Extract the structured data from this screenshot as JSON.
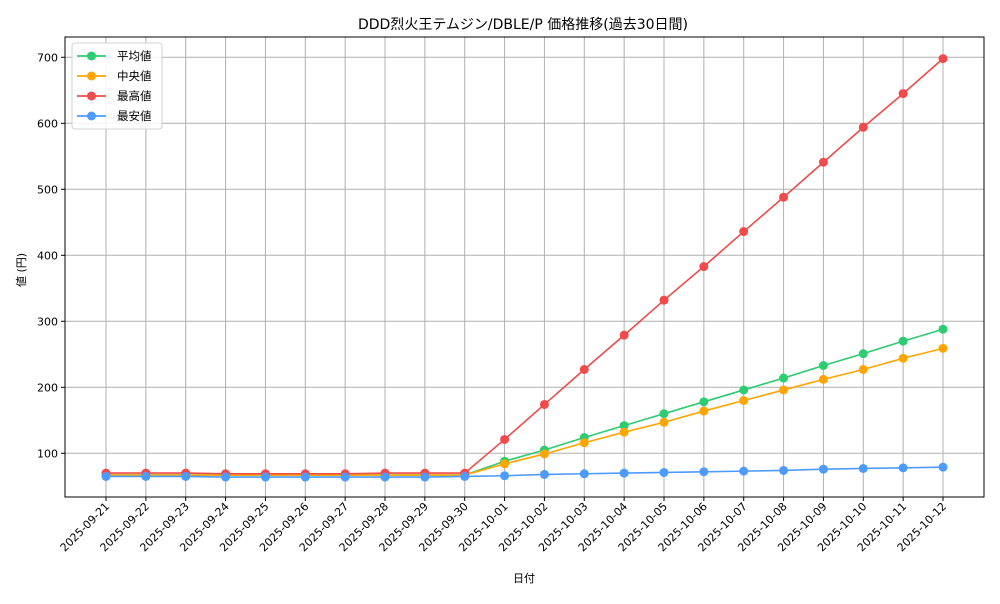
{
  "chart_data": {
    "type": "line",
    "title": "DDD烈火王テムジン/DBLE/P 価格推移(過去30日間)",
    "xlabel": "日付",
    "ylabel": "値 (円)",
    "ylim": [
      33,
      730
    ],
    "yticks": [
      100,
      200,
      300,
      400,
      500,
      600,
      700
    ],
    "grid": true,
    "legend_position": "upper left",
    "x": [
      "2025-09-21",
      "2025-09-22",
      "2025-09-23",
      "2025-09-24",
      "2025-09-25",
      "2025-09-26",
      "2025-09-27",
      "2025-09-28",
      "2025-09-29",
      "2025-09-30",
      "2025-10-01",
      "2025-10-02",
      "2025-10-03",
      "2025-10-04",
      "2025-10-05",
      "2025-10-06",
      "2025-10-07",
      "2025-10-08",
      "2025-10-09",
      "2025-10-10",
      "2025-10-11",
      "2025-10-12"
    ],
    "series": [
      {
        "name": "平均値",
        "color": "#2ecc71",
        "values": [
          67,
          67,
          67,
          67,
          67,
          67,
          67,
          67,
          67,
          67,
          88,
          105,
          124,
          142,
          160,
          178,
          196,
          214,
          233,
          251,
          270,
          288
        ]
      },
      {
        "name": "中央値",
        "color": "#ffa500",
        "values": [
          67,
          67,
          67,
          67,
          67,
          67,
          67,
          67,
          67,
          67,
          84,
          99,
          116,
          132,
          147,
          164,
          180,
          196,
          212,
          227,
          244,
          259
        ]
      },
      {
        "name": "最高値",
        "color": "#f04a4a",
        "values": [
          70,
          70,
          70,
          69,
          69,
          69,
          69,
          70,
          70,
          70,
          121,
          174,
          227,
          279,
          332,
          383,
          436,
          488,
          541,
          594,
          645,
          698
        ]
      },
      {
        "name": "最安値",
        "color": "#4d9bff",
        "values": [
          65,
          65,
          65,
          64,
          64,
          64,
          64,
          64,
          64,
          65,
          66,
          68,
          69,
          70,
          71,
          72,
          73,
          74,
          76,
          77,
          78,
          79
        ]
      }
    ]
  }
}
